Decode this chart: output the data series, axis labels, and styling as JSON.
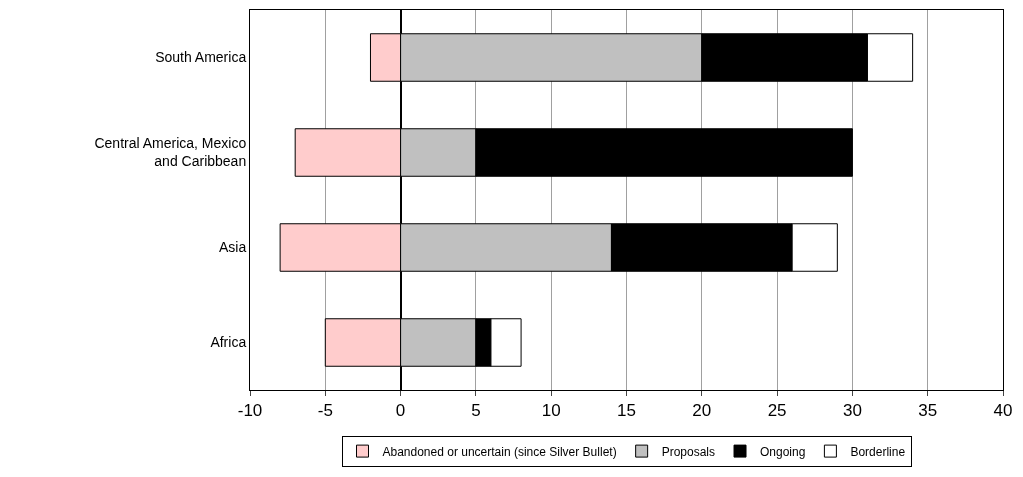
{
  "chart_data": {
    "type": "bar",
    "orientation": "horizontal",
    "stacked": true,
    "categories": [
      "South America",
      "Central America, Mexico and Caribbean",
      "Asia",
      "Africa"
    ],
    "series": [
      {
        "name": "Abandoned or uncertain (since Silver Bullet)",
        "color": "#ffcccc",
        "values": [
          -2,
          -7,
          -8,
          -5
        ]
      },
      {
        "name": "Proposals",
        "color": "#c0c0c0",
        "values": [
          20,
          5,
          14,
          5
        ]
      },
      {
        "name": "Ongoing",
        "color": "#000000",
        "values": [
          11,
          25,
          12,
          1
        ]
      },
      {
        "name": "Borderline",
        "color": "#ffffff",
        "values": [
          3,
          null,
          3,
          2
        ]
      }
    ],
    "xlim": [
      -10,
      40
    ],
    "xticks": [
      -10,
      -5,
      0,
      5,
      10,
      15,
      20,
      25,
      30,
      35,
      40
    ],
    "grid": "x",
    "legend": "bottom"
  }
}
